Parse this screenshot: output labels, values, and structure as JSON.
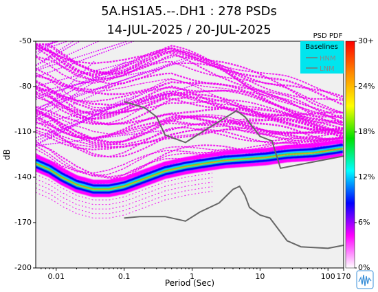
{
  "chart_data": {
    "type": "heatmap",
    "title": "5A.HS1A5.--.DH1 : 278 PSDs",
    "subtitle": "14-JUL-2025 / 20-JUL-2025",
    "xlabel": "Period (Sec)",
    "ylabel": "dB",
    "x_scale": "log",
    "xlim": [
      0.005,
      170
    ],
    "ylim": [
      -200,
      -50
    ],
    "x_ticks": [
      {
        "value": 0.01,
        "label": "0.01"
      },
      {
        "value": 0.1,
        "label": "0.1"
      },
      {
        "value": 1,
        "label": "1"
      },
      {
        "value": 10,
        "label": "10"
      },
      {
        "value": 100,
        "label": "100"
      },
      {
        "value": 170,
        "label": "170"
      }
    ],
    "y_ticks": [
      {
        "value": -50,
        "label": "-50"
      },
      {
        "value": -80,
        "label": "-80"
      },
      {
        "value": -110,
        "label": "-110"
      },
      {
        "value": -140,
        "label": "-140"
      },
      {
        "value": -170,
        "label": "-170"
      },
      {
        "value": -200,
        "label": "-200"
      }
    ],
    "colorbar": {
      "title": "PSD PDF",
      "ticks": [
        "30+",
        "24%",
        "18%",
        "12%",
        "6%",
        "0%"
      ],
      "colors": [
        "#ff0000",
        "#ff8c00",
        "#ffff00",
        "#00e000",
        "#00ffff",
        "#0000ff",
        "#ff00ff",
        "#ffffff"
      ]
    },
    "legend": {
      "title": "Baselines",
      "entries": [
        "HNM",
        "LNM"
      ],
      "position": "top-right"
    },
    "mode_curve": [
      [
        0.005,
        -131
      ],
      [
        0.008,
        -135
      ],
      [
        0.012,
        -140
      ],
      [
        0.02,
        -145
      ],
      [
        0.035,
        -148
      ],
      [
        0.06,
        -148
      ],
      [
        0.1,
        -146
      ],
      [
        0.2,
        -141
      ],
      [
        0.4,
        -136
      ],
      [
        0.8,
        -133
      ],
      [
        1.5,
        -131
      ],
      [
        3,
        -129
      ],
      [
        6,
        -128
      ],
      [
        12,
        -127
      ],
      [
        25,
        -125
      ],
      [
        60,
        -124
      ],
      [
        120,
        -122
      ],
      [
        170,
        -121
      ]
    ],
    "hnm": [
      [
        0.1,
        -90
      ],
      [
        0.2,
        -94
      ],
      [
        0.3,
        -100
      ],
      [
        0.4,
        -112
      ],
      [
        0.8,
        -117
      ],
      [
        1.2,
        -112
      ],
      [
        4.5,
        -96
      ],
      [
        6,
        -100
      ],
      [
        10,
        -113
      ],
      [
        15,
        -116
      ],
      [
        20,
        -134
      ],
      [
        170,
        -126
      ]
    ],
    "lnm": [
      [
        0.1,
        -167
      ],
      [
        0.17,
        -166
      ],
      [
        0.4,
        -166
      ],
      [
        0.8,
        -169
      ],
      [
        1.3,
        -163
      ],
      [
        2.5,
        -157
      ],
      [
        4,
        -148
      ],
      [
        5,
        -146
      ],
      [
        6,
        -152
      ],
      [
        7,
        -160
      ],
      [
        10,
        -165
      ],
      [
        14,
        -167
      ],
      [
        25,
        -182
      ],
      [
        40,
        -186
      ],
      [
        100,
        -187
      ],
      [
        170,
        -185
      ]
    ]
  }
}
